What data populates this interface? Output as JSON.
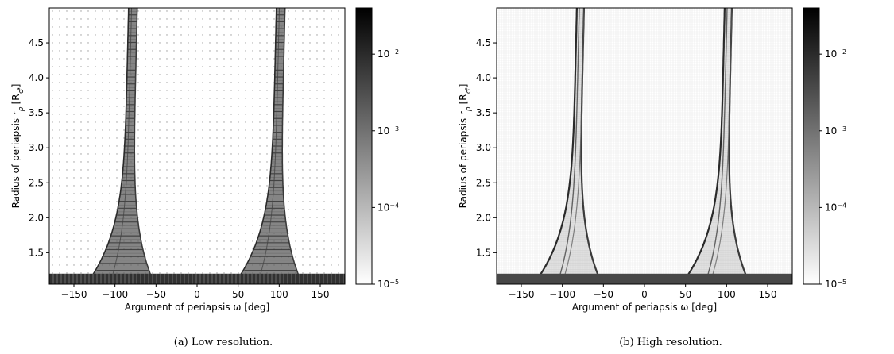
{
  "colorbar": {
    "scale": "log",
    "range": [
      1e-05,
      0.04
    ],
    "colormap": "Greys",
    "ticks": [
      {
        "value": 1e-05,
        "base": "10",
        "exp": "−5"
      },
      {
        "value": 0.0001,
        "base": "10",
        "exp": "−4"
      },
      {
        "value": 0.001,
        "base": "10",
        "exp": "−3"
      },
      {
        "value": 0.01,
        "base": "10",
        "exp": "−2"
      }
    ]
  },
  "chart_data": [
    {
      "type": "heatmap",
      "panel": "a",
      "caption": "(a) Low resolution.",
      "xlabel": "Argument of periapsis ω [deg]",
      "ylabel": "Radius of periapsis r",
      "ylabel_sub": "p",
      "ylabel_unit": "[R",
      "ylabel_unit_sub": "♂",
      "xlim": [
        -180,
        180
      ],
      "ylim": [
        1.05,
        5.0
      ],
      "xticks": [
        -150,
        -100,
        -50,
        0,
        50,
        100,
        150
      ],
      "yticks": [
        1.5,
        2.0,
        2.5,
        3.0,
        3.5,
        4.0,
        4.5
      ],
      "xtick_labels": [
        "−150",
        "−100",
        "−50",
        "0",
        "50",
        "100",
        "150"
      ],
      "ytick_labels": [
        "1.5",
        "2.0",
        "2.5",
        "3.0",
        "3.5",
        "4.0",
        "4.5"
      ],
      "resolution": "low",
      "features": {
        "lobe_centers_deg": [
          -85,
          95
        ],
        "lobe_top_width_deg": 12,
        "lobe_base_width_deg": 95,
        "base_band_rp": 1.2,
        "min_value": 1e-05,
        "max_value": 0.04
      }
    },
    {
      "type": "heatmap",
      "panel": "b",
      "caption": "(b) High resolution.",
      "xlabel": "Argument of periapsis ω [deg]",
      "ylabel": "Radius of periapsis r",
      "ylabel_sub": "p",
      "ylabel_unit": "[R",
      "ylabel_unit_sub": "♂",
      "xlim": [
        -180,
        180
      ],
      "ylim": [
        1.05,
        5.0
      ],
      "xticks": [
        -150,
        -100,
        -50,
        0,
        50,
        100,
        150
      ],
      "yticks": [
        1.5,
        2.0,
        2.5,
        3.0,
        3.5,
        4.0,
        4.5
      ],
      "xtick_labels": [
        "−150",
        "−100",
        "−50",
        "0",
        "50",
        "100",
        "150"
      ],
      "ytick_labels": [
        "1.5",
        "2.0",
        "2.5",
        "3.0",
        "3.5",
        "4.0",
        "4.5"
      ],
      "resolution": "high",
      "features": {
        "lobe_centers_deg": [
          -85,
          95
        ],
        "lobe_top_width_deg": 10,
        "lobe_base_width_deg": 95,
        "base_band_rp": 1.2,
        "min_value": 1e-05,
        "max_value": 0.04
      }
    }
  ]
}
